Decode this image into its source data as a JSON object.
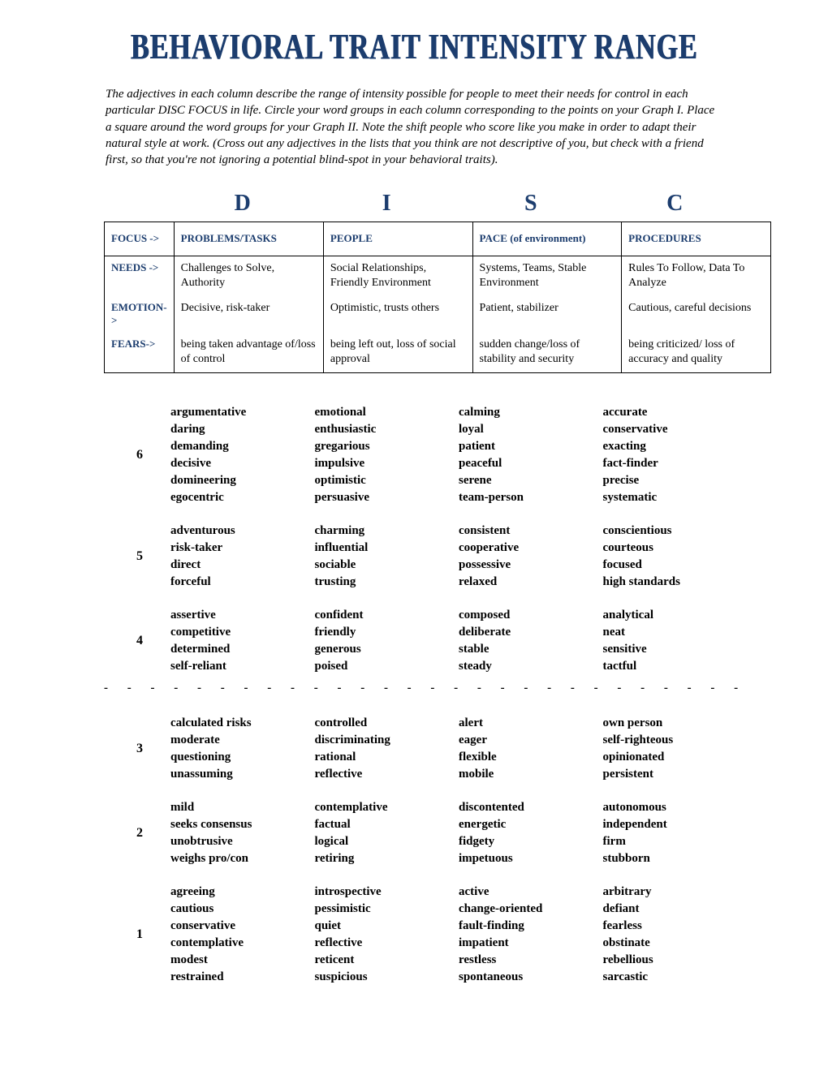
{
  "title": "BEHAVIORAL TRAIT INTENSITY RANGE",
  "intro": "The adjectives in each column describe the range of intensity possible for people to meet their needs for control in each particular DISC FOCUS in life. Circle your word groups in each column corresponding to the points on your Graph I.  Place a square around the word groups for your Graph II.  Note the shift people who score like you make in order to adapt their natural style at work. (Cross out any adjectives in the lists that you think are not descriptive of you, but check with a friend first, so that you're not ignoring a potential blind-spot in your behavioral traits).",
  "disc": {
    "d": "D",
    "i": "I",
    "s": "S",
    "c": "C"
  },
  "labels": {
    "focus": "FOCUS ->",
    "needs": "NEEDS ->",
    "emotion": "EMOTION->",
    "fears": "FEARS->"
  },
  "focus": {
    "d": "PROBLEMS/TASKS",
    "i": "PEOPLE",
    "s": "PACE (of environment)",
    "c": "PROCEDURES"
  },
  "needs": {
    "d": "Challenges to Solve, Authority",
    "i": "Social Relationships, Friendly Environment",
    "s": "Systems, Teams, Stable Environment",
    "c": "Rules To Follow, Data To Analyze"
  },
  "emotion": {
    "d": "Decisive, risk-taker",
    "i": "Optimistic, trusts others",
    "s": "Patient, stabilizer",
    "c": "Cautious, careful decisions"
  },
  "fears": {
    "d": "being taken advantage of/loss of control",
    "i": "being left out, loss of social approval",
    "s": "sudden change/loss of stability and security",
    "c": "being criticized/ loss of accuracy and quality"
  },
  "levels": {
    "n6": "6",
    "n5": "5",
    "n4": "4",
    "n3": "3",
    "n2": "2",
    "n1": "1"
  },
  "r6": {
    "d": [
      "argumentative",
      "daring",
      "demanding",
      "decisive",
      "domineering",
      "egocentric"
    ],
    "i": [
      "emotional",
      "enthusiastic",
      "gregarious",
      "impulsive",
      "optimistic",
      "persuasive"
    ],
    "s": [
      "calming",
      "loyal",
      "patient",
      "peaceful",
      "serene",
      "team-person"
    ],
    "c": [
      "accurate",
      "conservative",
      "exacting",
      "fact-finder",
      "precise",
      "systematic"
    ]
  },
  "r5": {
    "d": [
      "adventurous",
      "risk-taker",
      "direct",
      "forceful"
    ],
    "i": [
      "charming",
      "influential",
      "sociable",
      "trusting"
    ],
    "s": [
      "consistent",
      "cooperative",
      "possessive",
      "relaxed"
    ],
    "c": [
      "conscientious",
      "courteous",
      "focused",
      "high standards"
    ]
  },
  "r4": {
    "d": [
      "assertive",
      "competitive",
      "determined",
      "self-reliant"
    ],
    "i": [
      "confident",
      "friendly",
      "generous",
      "poised"
    ],
    "s": [
      "composed",
      "deliberate",
      "stable",
      "steady"
    ],
    "c": [
      "analytical",
      "neat",
      "sensitive",
      "tactful"
    ]
  },
  "r3": {
    "d": [
      "calculated risks",
      "moderate",
      "questioning",
      "unassuming"
    ],
    "i": [
      "controlled",
      "discriminating",
      "rational",
      "reflective"
    ],
    "s": [
      "alert",
      "eager",
      "flexible",
      "mobile"
    ],
    "c": [
      "own person",
      "self-righteous",
      "opinionated",
      "persistent"
    ]
  },
  "r2": {
    "d": [
      "mild",
      "seeks consensus",
      "unobtrusive",
      "weighs pro/con"
    ],
    "i": [
      "contemplative",
      "factual",
      "logical",
      "retiring"
    ],
    "s": [
      "discontented",
      "energetic",
      "fidgety",
      "impetuous"
    ],
    "c": [
      "autonomous",
      "independent",
      "firm",
      "stubborn"
    ]
  },
  "r1": {
    "d": [
      "agreeing",
      "cautious",
      "conservative",
      "contemplative",
      "modest",
      "restrained"
    ],
    "i": [
      "introspective",
      "pessimistic",
      "quiet",
      "reflective",
      "reticent",
      "suspicious"
    ],
    "s": [
      "active",
      "change-oriented",
      "fault-finding",
      "impatient",
      "restless",
      "spontaneous"
    ],
    "c": [
      "arbitrary",
      "defiant",
      "fearless",
      "obstinate",
      "rebellious",
      "sarcastic"
    ]
  },
  "dashes": "-  -  -  -  -  -  -  -  -  -  -  -  -  -  -  -  -  -  -  -  -  -  -  -  -  -  -  -  -  -  -  -  -  -  -"
}
